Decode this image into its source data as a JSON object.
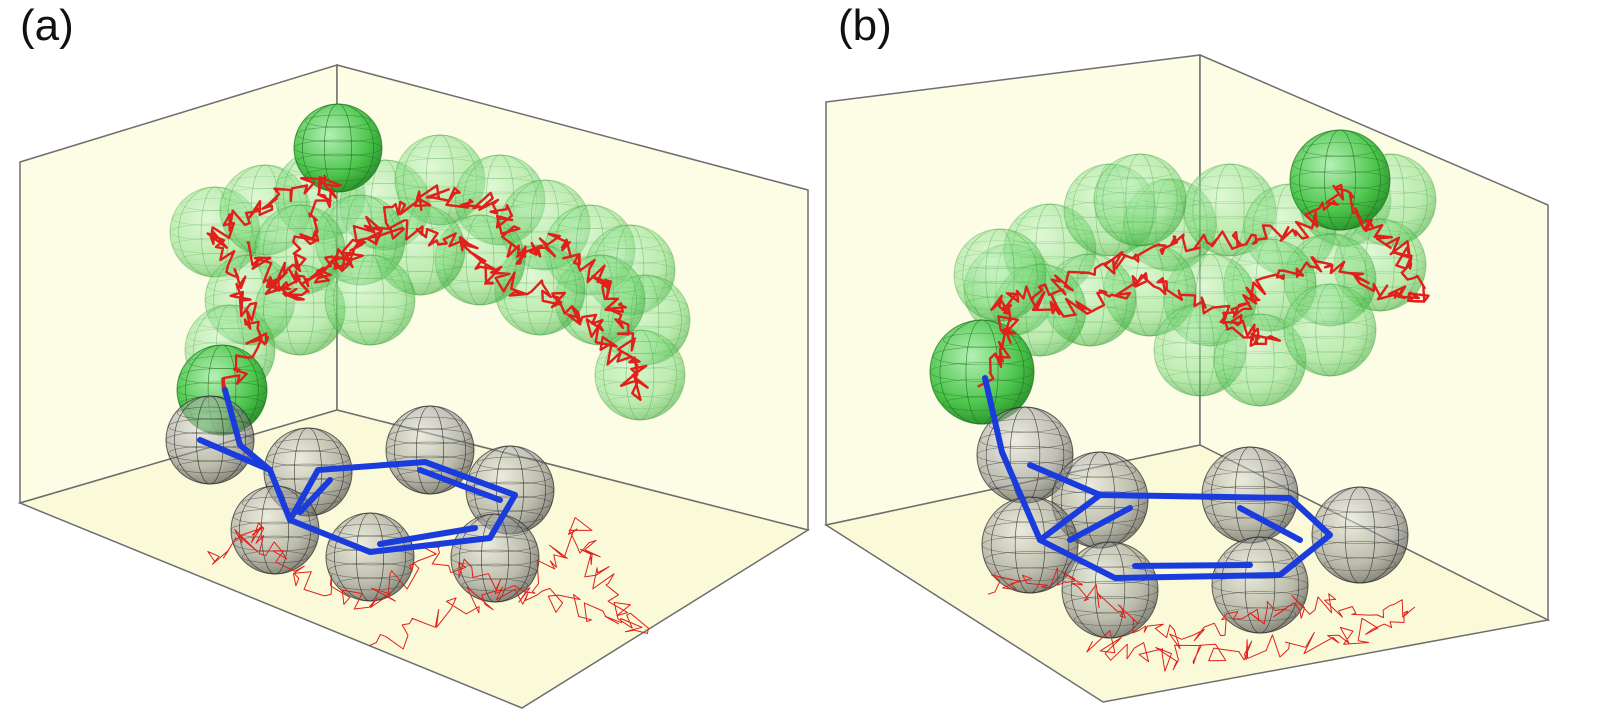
{
  "panels": [
    {
      "label": "(a)"
    },
    {
      "label": "(b)"
    }
  ],
  "colors": {
    "box_fill": "#fdfde6",
    "box_edge": "#6e6e6e",
    "green_sphere": "#43c443",
    "green_sphere_light": "#8fe08f",
    "gray_sphere": "#6d6d6d",
    "trajectory": "#e0201a",
    "molecule_bond": "#1a3cdc"
  },
  "icons": {
    "green_sphere": "transparent-green-sphere",
    "gray_sphere": "gray-wireframe-sphere",
    "trajectory": "red-trajectory-path",
    "molecule": "blue-ring-molecule"
  }
}
